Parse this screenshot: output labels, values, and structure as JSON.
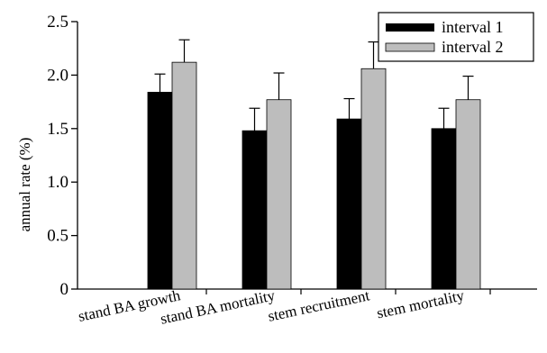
{
  "chart_data": {
    "type": "bar",
    "title": "",
    "xlabel": "",
    "ylabel": "annual rate (%)",
    "ylim": [
      0,
      2.5
    ],
    "yticks": [
      "0",
      "0.5",
      "1.0",
      "1.5",
      "2.0",
      "2.5"
    ],
    "categories": [
      "stand BA growth",
      "stand BA mortality",
      "stem recruitment",
      "stem mortality"
    ],
    "series": [
      {
        "name": "interval 1",
        "color": "#000000",
        "values": [
          1.84,
          1.48,
          1.59,
          1.5
        ],
        "errors": [
          0.17,
          0.21,
          0.19,
          0.19
        ]
      },
      {
        "name": "interval 2",
        "color": "#bdbdbd",
        "values": [
          2.12,
          1.77,
          2.06,
          1.77
        ],
        "errors": [
          0.21,
          0.25,
          0.25,
          0.22
        ]
      }
    ],
    "legend": {
      "position": "top-right"
    },
    "grid": false,
    "error_bars": "upper"
  }
}
